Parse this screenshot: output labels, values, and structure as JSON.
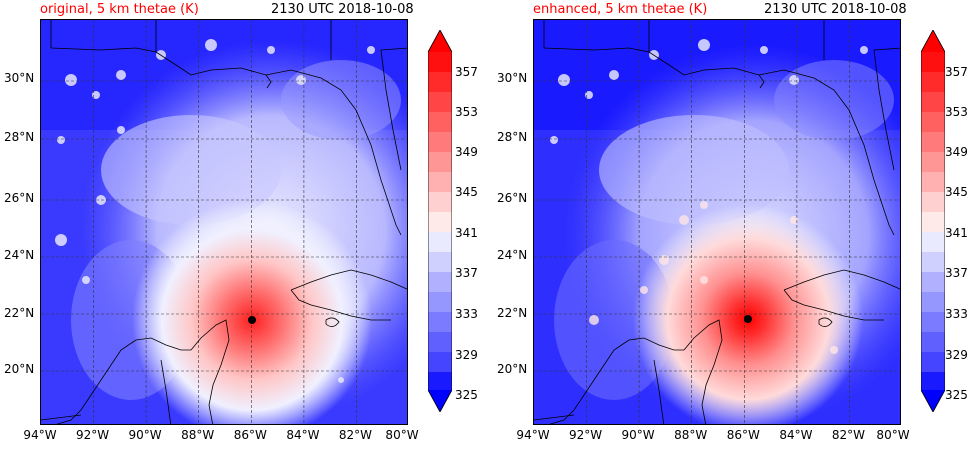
{
  "panels": [
    {
      "title": "original, 5 km thetae (K)",
      "time": "2130 UTC 2018-10-08",
      "center_lon": -86.0,
      "center_lat": 21.8
    },
    {
      "title": "enhanced, 5 km thetae (K)",
      "time": "2130 UTC 2018-10-08",
      "center_lon": -85.9,
      "center_lat": 21.8
    }
  ],
  "lat_labels": [
    "30°N",
    "28°N",
    "26°N",
    "24°N",
    "22°N",
    "20°N"
  ],
  "lon_labels": [
    "94°W",
    "92°W",
    "90°W",
    "88°W",
    "86°W",
    "84°W",
    "82°W",
    "80°W"
  ],
  "colorbar": {
    "ticks": [
      "357",
      "353",
      "349",
      "345",
      "341",
      "337",
      "333",
      "329",
      "325"
    ],
    "min": 325,
    "max": 359,
    "colors_low": "#0000ff",
    "colors_mid": "#ffffff",
    "colors_high": "#ff0000"
  }
}
